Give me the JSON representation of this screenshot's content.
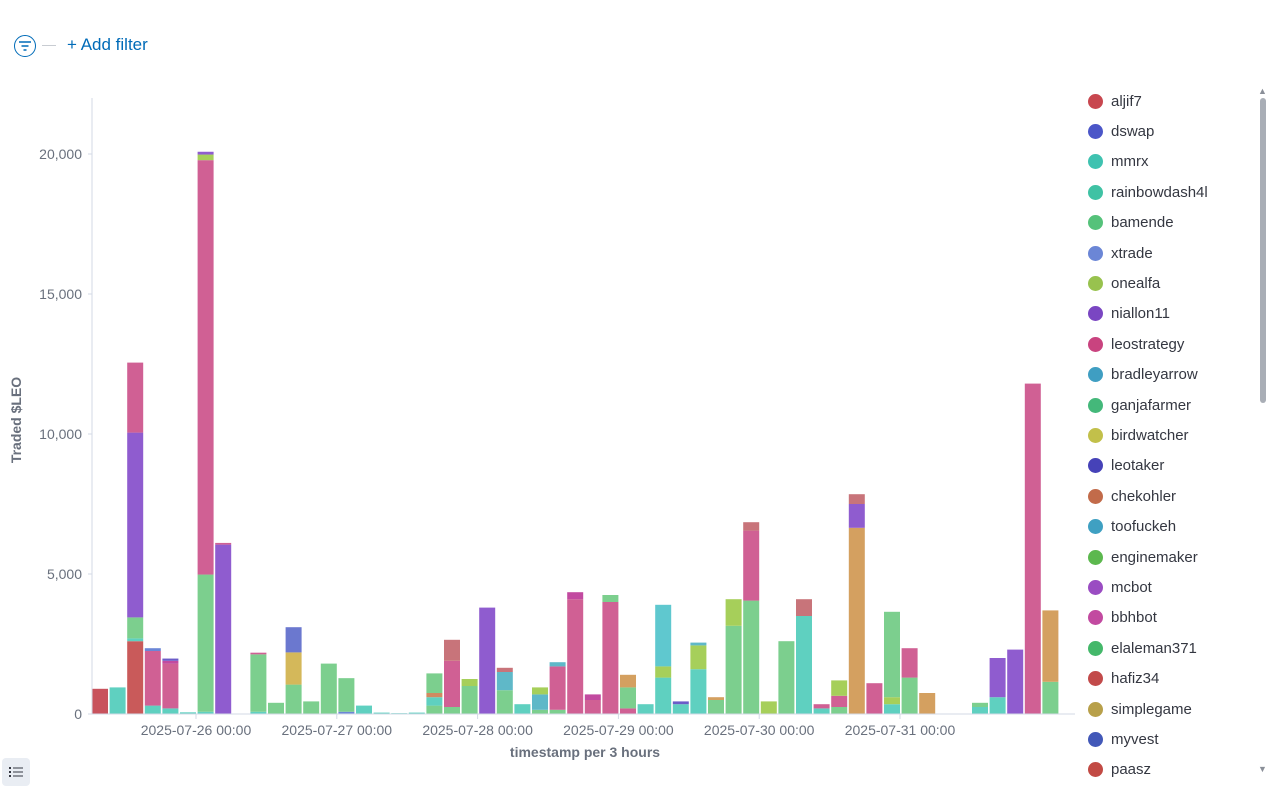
{
  "toolbar": {
    "add_filter_label": "+ Add filter",
    "filter_icon": "filter-icon"
  },
  "legend": {
    "items": [
      {
        "label": "aljif7",
        "color": "#c8474f"
      },
      {
        "label": "dswap",
        "color": "#4b56c8"
      },
      {
        "label": "mmrx",
        "color": "#3fc2b0"
      },
      {
        "label": "rainbowdash4l",
        "color": "#3fc2a4"
      },
      {
        "label": "bamende",
        "color": "#55c27a"
      },
      {
        "label": "xtrade",
        "color": "#6b86d6"
      },
      {
        "label": "onealfa",
        "color": "#98c24e"
      },
      {
        "label": "niallon11",
        "color": "#7a46c2"
      },
      {
        "label": "leostrategy",
        "color": "#c9437f"
      },
      {
        "label": "bradleyarrow",
        "color": "#3f9ec2"
      },
      {
        "label": "ganjafarmer",
        "color": "#44b87a"
      },
      {
        "label": "birdwatcher",
        "color": "#c2c04a"
      },
      {
        "label": "leotaker",
        "color": "#4642b8"
      },
      {
        "label": "chekohler",
        "color": "#c26b4a"
      },
      {
        "label": "toofuckeh",
        "color": "#3fa0c2"
      },
      {
        "label": "enginemaker",
        "color": "#5cb84e"
      },
      {
        "label": "mcbot",
        "color": "#9a4cc2"
      },
      {
        "label": "bbhbot",
        "color": "#c24aa0"
      },
      {
        "label": "elaleman371",
        "color": "#44b86a"
      },
      {
        "label": "hafiz34",
        "color": "#c24a4a"
      },
      {
        "label": "simplegame",
        "color": "#b8a04a"
      },
      {
        "label": "myvest",
        "color": "#4258b8"
      },
      {
        "label": "paasz",
        "color": "#c24a44"
      }
    ]
  },
  "chart_data": {
    "type": "bar",
    "stacked": true,
    "xlabel": "timestamp per 3 hours",
    "ylabel": "Traded $LEO",
    "ylim": [
      0,
      22000
    ],
    "yticks": [
      "0",
      "5,000",
      "10,000",
      "15,000",
      "20,000"
    ],
    "xticks": [
      "2025-07-26 00:00",
      "2025-07-27 00:00",
      "2025-07-28 00:00",
      "2025-07-29 00:00",
      "2025-07-30 00:00",
      "2025-07-31 00:00"
    ],
    "xtick_slots": [
      5,
      13,
      21,
      29,
      37,
      45
    ],
    "bars": [
      {
        "slot": 0,
        "stacks": [
          [
            "#c8535d",
            900
          ]
        ]
      },
      {
        "slot": 1,
        "stacks": [
          [
            "#5fd0c0",
            950
          ]
        ]
      },
      {
        "slot": 2,
        "stacks": [
          [
            "#c95a5a",
            2600
          ],
          [
            "#5fd0c0",
            100
          ],
          [
            "#7ccf8e",
            750
          ],
          [
            "#8f5ccf",
            6600
          ],
          [
            "#d06094",
            2500
          ]
        ]
      },
      {
        "slot": 3,
        "stacks": [
          [
            "#5fd0c0",
            300
          ],
          [
            "#d06094",
            1950
          ],
          [
            "#6b86d6",
            100
          ]
        ]
      },
      {
        "slot": 4,
        "stacks": [
          [
            "#5fd0c0",
            200
          ],
          [
            "#d06094",
            1600
          ],
          [
            "#c24aa0",
            100
          ],
          [
            "#6b5cc8",
            80
          ]
        ]
      },
      {
        "slot": 5,
        "stacks": [
          [
            "#5fd0c0",
            60
          ]
        ]
      },
      {
        "slot": 6,
        "stacks": [
          [
            "#5fd0c0",
            80
          ],
          [
            "#7ccf8e",
            4900
          ],
          [
            "#d06094",
            14800
          ],
          [
            "#a6cf5a",
            200
          ],
          [
            "#8f5ccf",
            100
          ]
        ]
      },
      {
        "slot": 7,
        "stacks": [
          [
            "#8f5ccf",
            6050
          ],
          [
            "#d06094",
            60
          ]
        ]
      },
      {
        "slot": 9,
        "stacks": [
          [
            "#5fd0c0",
            80
          ],
          [
            "#7ccf8e",
            2050
          ],
          [
            "#d06094",
            60
          ]
        ]
      },
      {
        "slot": 10,
        "stacks": [
          [
            "#7ccf8e",
            400
          ]
        ]
      },
      {
        "slot": 11,
        "stacks": [
          [
            "#7ccf8e",
            1050
          ],
          [
            "#d4b85a",
            1150
          ],
          [
            "#6b78cf",
            900
          ]
        ]
      },
      {
        "slot": 12,
        "stacks": [
          [
            "#7ccf8e",
            450
          ]
        ]
      },
      {
        "slot": 13,
        "stacks": [
          [
            "#7ccf8e",
            1800
          ]
        ]
      },
      {
        "slot": 14,
        "stacks": [
          [
            "#6b86d6",
            80
          ],
          [
            "#7ccf8e",
            1200
          ]
        ]
      },
      {
        "slot": 15,
        "stacks": [
          [
            "#5fd0c0",
            300
          ]
        ]
      },
      {
        "slot": 16,
        "stacks": [
          [
            "#5fd0c0",
            50
          ]
        ]
      },
      {
        "slot": 17,
        "stacks": [
          [
            "#5fd0c0",
            30
          ]
        ]
      },
      {
        "slot": 18,
        "stacks": [
          [
            "#5fd0c0",
            50
          ]
        ]
      },
      {
        "slot": 19,
        "stacks": [
          [
            "#7ccf8e",
            300
          ],
          [
            "#5fd0c0",
            300
          ],
          [
            "#d08a60",
            150
          ],
          [
            "#7ccf8e",
            700
          ]
        ]
      },
      {
        "slot": 20,
        "stacks": [
          [
            "#7ccf8e",
            250
          ],
          [
            "#d06094",
            1650
          ],
          [
            "#c8747a",
            750
          ]
        ]
      },
      {
        "slot": 21,
        "stacks": [
          [
            "#7ccf8e",
            1000
          ],
          [
            "#a6cf5a",
            250
          ]
        ]
      },
      {
        "slot": 22,
        "stacks": [
          [
            "#8f5ccf",
            3800
          ]
        ]
      },
      {
        "slot": 23,
        "stacks": [
          [
            "#7ccf8e",
            850
          ],
          [
            "#5fb8c8",
            650
          ],
          [
            "#c8747a",
            150
          ]
        ]
      },
      {
        "slot": 24,
        "stacks": [
          [
            "#5fd0c0",
            350
          ]
        ]
      },
      {
        "slot": 25,
        "stacks": [
          [
            "#7ccf8e",
            150
          ],
          [
            "#5fb8c8",
            550
          ],
          [
            "#a6cf5a",
            250
          ]
        ]
      },
      {
        "slot": 26,
        "stacks": [
          [
            "#7ccf8e",
            150
          ],
          [
            "#d06094",
            1550
          ],
          [
            "#5fb8c8",
            150
          ]
        ]
      },
      {
        "slot": 27,
        "stacks": [
          [
            "#d06094",
            4100
          ],
          [
            "#c24aa0",
            250
          ]
        ]
      },
      {
        "slot": 28,
        "stacks": [
          [
            "#d06094",
            500
          ],
          [
            "#c24aa0",
            200
          ]
        ]
      },
      {
        "slot": 29,
        "stacks": [
          [
            "#d06094",
            4000
          ],
          [
            "#7ccf8e",
            250
          ]
        ]
      },
      {
        "slot": 30,
        "stacks": [
          [
            "#d06094",
            200
          ],
          [
            "#7ccf8e",
            750
          ],
          [
            "#d4a060",
            450
          ]
        ]
      },
      {
        "slot": 31,
        "stacks": [
          [
            "#5fd0c0",
            350
          ]
        ]
      },
      {
        "slot": 32,
        "stacks": [
          [
            "#5fd0c0",
            1300
          ],
          [
            "#a6cf5a",
            400
          ],
          [
            "#5fc8cf",
            2200
          ]
        ]
      },
      {
        "slot": 33,
        "stacks": [
          [
            "#5fd0c0",
            350
          ],
          [
            "#6b5cc8",
            100
          ]
        ]
      },
      {
        "slot": 34,
        "stacks": [
          [
            "#5fd0c0",
            1600
          ],
          [
            "#a6cf5a",
            850
          ],
          [
            "#5fb8c8",
            100
          ]
        ]
      },
      {
        "slot": 35,
        "stacks": [
          [
            "#7ccf8e",
            500
          ],
          [
            "#d4a060",
            100
          ]
        ]
      },
      {
        "slot": 36,
        "stacks": [
          [
            "#7ccf8e",
            3150
          ],
          [
            "#a6cf5a",
            950
          ]
        ]
      },
      {
        "slot": 37,
        "stacks": [
          [
            "#7ccf8e",
            4050
          ],
          [
            "#d06094",
            2500
          ],
          [
            "#c8747a",
            300
          ]
        ]
      },
      {
        "slot": 38,
        "stacks": [
          [
            "#a6cf5a",
            450
          ]
        ]
      },
      {
        "slot": 39,
        "stacks": [
          [
            "#7ccf8e",
            2600
          ]
        ]
      },
      {
        "slot": 40,
        "stacks": [
          [
            "#5fd0c0",
            3500
          ],
          [
            "#c8747a",
            600
          ]
        ]
      },
      {
        "slot": 41,
        "stacks": [
          [
            "#5fd0c0",
            200
          ],
          [
            "#d06094",
            150
          ]
        ]
      },
      {
        "slot": 42,
        "stacks": [
          [
            "#7ccf8e",
            250
          ],
          [
            "#d06094",
            400
          ],
          [
            "#a6cf5a",
            550
          ]
        ]
      },
      {
        "slot": 43,
        "stacks": [
          [
            "#d4a060",
            6650
          ],
          [
            "#8f5ccf",
            850
          ],
          [
            "#c8747a",
            350
          ]
        ]
      },
      {
        "slot": 44,
        "stacks": [
          [
            "#d06094",
            1100
          ]
        ]
      },
      {
        "slot": 45,
        "stacks": [
          [
            "#5fd0c0",
            350
          ],
          [
            "#a6cf5a",
            250
          ],
          [
            "#7ccf8e",
            3050
          ]
        ]
      },
      {
        "slot": 46,
        "stacks": [
          [
            "#7ccf8e",
            1300
          ],
          [
            "#d06094",
            1050
          ]
        ]
      },
      {
        "slot": 47,
        "stacks": [
          [
            "#d4a060",
            750
          ]
        ]
      },
      {
        "slot": 50,
        "stacks": [
          [
            "#5fd0c0",
            250
          ],
          [
            "#7ccf8e",
            150
          ]
        ]
      },
      {
        "slot": 51,
        "stacks": [
          [
            "#5fd0c0",
            600
          ],
          [
            "#8f5ccf",
            1400
          ]
        ]
      },
      {
        "slot": 52,
        "stacks": [
          [
            "#8f5ccf",
            2300
          ]
        ]
      },
      {
        "slot": 53,
        "stacks": [
          [
            "#d06094",
            11800
          ]
        ]
      },
      {
        "slot": 54,
        "stacks": [
          [
            "#7ccf8e",
            1150
          ],
          [
            "#d4a060",
            2550
          ]
        ]
      }
    ]
  }
}
